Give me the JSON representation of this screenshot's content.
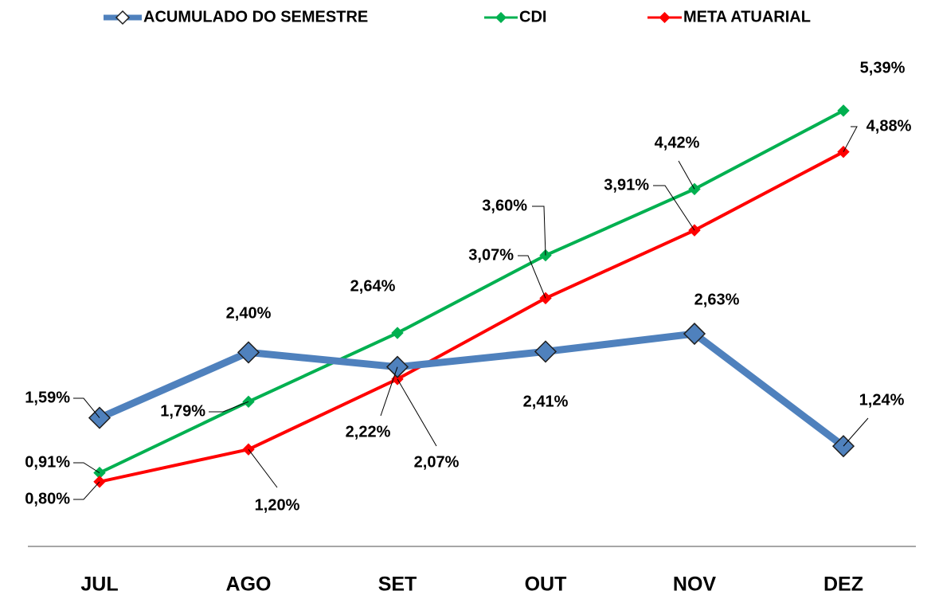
{
  "chart_data": {
    "type": "line",
    "categories": [
      "JUL",
      "AGO",
      "SET",
      "OUT",
      "NOV",
      "DEZ"
    ],
    "ylim": [
      0,
      6
    ],
    "series": [
      {
        "name": "ACUMULADO DO SEMESTRE",
        "color": "#4f81bd",
        "values": [
          1.59,
          2.4,
          2.22,
          2.41,
          2.63,
          1.24
        ],
        "value_labels": [
          "1,59%",
          "2,40%",
          "2,22%",
          "2,41%",
          "2,63%",
          "1,24%"
        ]
      },
      {
        "name": "CDI",
        "color": "#00b050",
        "values": [
          0.91,
          1.79,
          2.64,
          3.6,
          4.42,
          5.39
        ],
        "value_labels": [
          "0,91%",
          "1,79%",
          "2,64%",
          "3,60%",
          "4,42%",
          "5,39%"
        ]
      },
      {
        "name": "META ATUARIAL",
        "color": "#ff0000",
        "values": [
          0.8,
          1.2,
          2.07,
          3.07,
          3.91,
          4.88
        ],
        "value_labels": [
          "0,80%",
          "1,20%",
          "2,07%",
          "3,07%",
          "3,91%",
          "4,88%"
        ]
      }
    ]
  }
}
